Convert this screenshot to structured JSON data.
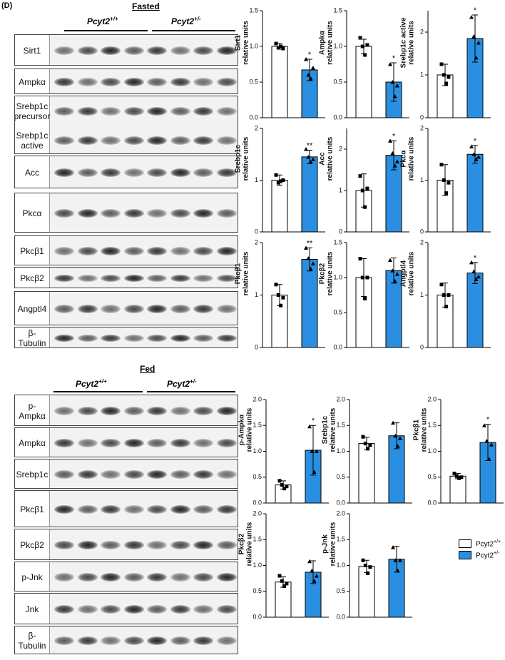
{
  "panel_label": "(D)",
  "fasted": {
    "title": "Fasted",
    "groups": [
      {
        "name": "Pcyt2",
        "sup": "+/+"
      },
      {
        "name": "Pcyt2",
        "sup": "+/-"
      }
    ],
    "blots": [
      {
        "labels": [
          "Sirt1"
        ]
      },
      {
        "labels": [
          "Ampkα"
        ]
      },
      {
        "labels": [
          "Srebp1c precursor",
          "Srebp1c active"
        ]
      },
      {
        "labels": [
          "Acc"
        ]
      },
      {
        "labels": [
          "Pkcα"
        ]
      },
      {
        "labels": [
          "Pkcβ1"
        ]
      },
      {
        "labels": [
          "Pkcβ2"
        ]
      },
      {
        "labels": [
          "Angptl4"
        ]
      },
      {
        "labels": [
          "β-Tubulin"
        ]
      }
    ]
  },
  "fed": {
    "title": "Fed",
    "groups": [
      {
        "name": "Pcyt2",
        "sup": "+/+"
      },
      {
        "name": "Pcyt2",
        "sup": "+/-"
      }
    ],
    "blots": [
      {
        "labels": [
          "p-Ampkα"
        ]
      },
      {
        "labels": [
          "Ampkα"
        ]
      },
      {
        "labels": [
          "Srebp1c"
        ]
      },
      {
        "labels": [
          "Pkcβ1"
        ]
      },
      {
        "labels": [
          "Pkcβ2"
        ]
      },
      {
        "labels": [
          "p-Jnk"
        ]
      },
      {
        "labels": [
          "Jnk"
        ]
      },
      {
        "labels": [
          "β-Tubulin"
        ]
      }
    ]
  },
  "legend": [
    {
      "name": "Pcyt2",
      "sup": "+/+",
      "color": "#ffffff"
    },
    {
      "name": "Pcyt2",
      "sup": "+/-",
      "color": "#2a8fe0"
    }
  ],
  "chart_data": [
    {
      "type": "bar",
      "ylabel": [
        "Sirt1",
        "relative units"
      ],
      "categories": [
        null,
        null
      ],
      "values": [
        1.0,
        0.67
      ],
      "errors": [
        0.04,
        0.15
      ],
      "points": [
        [
          1.04,
          0.98,
          1.0,
          0.97
        ],
        [
          0.82,
          0.6,
          0.55,
          0.7
        ]
      ],
      "significance": [
        null,
        "*"
      ],
      "ylim": [
        0,
        1.5
      ],
      "yticks": [
        {
          "value": 0,
          "label": "0.0"
        },
        {
          "value": 0.5,
          "label": "0.5"
        },
        {
          "value": 1,
          "label": "1.0"
        },
        {
          "value": 1.5,
          "label": "1.5"
        }
      ]
    },
    {
      "type": "bar",
      "ylabel": [
        "Ampkα",
        "relative units"
      ],
      "categories": [
        null,
        null
      ],
      "values": [
        1.0,
        0.5
      ],
      "errors": [
        0.1,
        0.27
      ],
      "points": [
        [
          1.12,
          1.0,
          0.88,
          1.02
        ],
        [
          0.75,
          0.5,
          0.3,
          0.45
        ]
      ],
      "significance": [
        null,
        "*"
      ],
      "ylim": [
        0,
        1.5
      ],
      "yticks": [
        {
          "value": 0,
          "label": "0.0"
        },
        {
          "value": 0.5,
          "label": "0.5"
        },
        {
          "value": 1,
          "label": "1.0"
        },
        {
          "value": 1.5,
          "label": "1.5"
        }
      ]
    },
    {
      "type": "bar",
      "ylabel": [
        "Srebp1c active",
        "relative units"
      ],
      "categories": [
        null,
        null
      ],
      "values": [
        1.0,
        1.85
      ],
      "errors": [
        0.25,
        0.55
      ],
      "points": [
        [
          1.25,
          1.0,
          0.8,
          0.95
        ],
        [
          2.35,
          1.9,
          1.4,
          1.75
        ]
      ],
      "significance": [
        null,
        "*"
      ],
      "ylim": [
        0,
        2.5
      ],
      "yticks": [
        0,
        1,
        2
      ]
    },
    {
      "type": "bar",
      "ylabel": [
        "Srebp1c",
        "relative units"
      ],
      "categories": [
        null,
        null
      ],
      "values": [
        1.0,
        1.45
      ],
      "errors": [
        0.1,
        0.13
      ],
      "points": [
        [
          1.1,
          0.95,
          0.98,
          1.0
        ],
        [
          1.6,
          1.45,
          1.35,
          1.4
        ]
      ],
      "significance": [
        null,
        "**"
      ],
      "ylim": [
        0,
        2
      ],
      "yticks": [
        0,
        1,
        2
      ]
    },
    {
      "type": "bar",
      "ylabel": [
        "Acc",
        "relative units"
      ],
      "categories": [
        null,
        null
      ],
      "values": [
        1.0,
        1.85
      ],
      "errors": [
        0.4,
        0.35
      ],
      "points": [
        [
          1.35,
          1.0,
          0.6,
          1.05
        ],
        [
          2.2,
          1.9,
          1.6,
          1.7
        ]
      ],
      "significance": [
        null,
        "*"
      ],
      "ylim": [
        0,
        2.5
      ],
      "yticks": [
        0,
        1,
        2
      ]
    },
    {
      "type": "bar",
      "ylabel": [
        "Pkcα",
        "relative units"
      ],
      "categories": [
        null,
        null
      ],
      "values": [
        1.0,
        1.5
      ],
      "errors": [
        0.3,
        0.17
      ],
      "points": [
        [
          1.3,
          1.0,
          0.75,
          0.95
        ],
        [
          1.65,
          1.5,
          1.4,
          1.45
        ]
      ],
      "significance": [
        null,
        "*"
      ],
      "ylim": [
        0,
        2
      ],
      "yticks": [
        0,
        1,
        2
      ]
    },
    {
      "type": "bar",
      "ylabel": [
        "Pkcβ1",
        "relative units"
      ],
      "categories": [
        null,
        null
      ],
      "values": [
        1.0,
        1.68
      ],
      "errors": [
        0.2,
        0.22
      ],
      "points": [
        [
          1.2,
          1.0,
          0.8,
          0.95
        ],
        [
          1.9,
          1.7,
          1.5,
          1.6
        ]
      ],
      "significance": [
        null,
        "**"
      ],
      "ylim": [
        0,
        2
      ],
      "yticks": [
        0,
        1,
        2
      ]
    },
    {
      "type": "bar",
      "ylabel": [
        "Pkcβ2",
        "relative units"
      ],
      "categories": [
        null,
        null
      ],
      "values": [
        1.0,
        1.1
      ],
      "errors": [
        0.27,
        0.18
      ],
      "points": [
        [
          1.27,
          1.0,
          0.7,
          1.0
        ],
        [
          1.25,
          1.1,
          0.95,
          1.05
        ]
      ],
      "significance": [
        null,
        null
      ],
      "ylim": [
        0,
        1.5
      ],
      "yticks": [
        {
          "value": 0,
          "label": "0.0"
        },
        {
          "value": 0.5,
          "label": "0.5"
        },
        {
          "value": 1,
          "label": "1.0"
        },
        {
          "value": 1.5,
          "label": "1.5"
        }
      ]
    },
    {
      "type": "bar",
      "ylabel": [
        "Angptl4",
        "relative units"
      ],
      "categories": [
        null,
        null
      ],
      "values": [
        1.0,
        1.42
      ],
      "errors": [
        0.23,
        0.2
      ],
      "points": [
        [
          1.2,
          1.0,
          0.78,
          1.0
        ],
        [
          1.62,
          1.45,
          1.3,
          1.35
        ]
      ],
      "significance": [
        null,
        "*"
      ],
      "ylim": [
        0,
        2
      ],
      "yticks": [
        0,
        1,
        2
      ]
    },
    {
      "type": "bar",
      "ylabel": [
        "p-Ampkα",
        "relative units"
      ],
      "categories": [
        null,
        null
      ],
      "values": [
        0.35,
        1.02
      ],
      "errors": [
        0.08,
        0.48
      ],
      "points": [
        [
          0.43,
          0.35,
          0.28,
          0.32
        ],
        [
          1.48,
          1.0,
          0.6,
          1.0
        ]
      ],
      "significance": [
        null,
        "*"
      ],
      "ylim": [
        0,
        2
      ],
      "yticks": [
        {
          "value": 0,
          "label": "0.0"
        },
        {
          "value": 0.5,
          "label": "0.5"
        },
        {
          "value": 1,
          "label": "1.0"
        },
        {
          "value": 1.5,
          "label": "1.5"
        },
        {
          "value": 2,
          "label": "2.0"
        }
      ]
    },
    {
      "type": "bar",
      "ylabel": [
        "Srebp1c",
        "relative units"
      ],
      "categories": [
        null,
        null
      ],
      "values": [
        1.15,
        1.3
      ],
      "errors": [
        0.12,
        0.25
      ],
      "points": [
        [
          1.28,
          1.15,
          1.05,
          1.12
        ],
        [
          1.55,
          1.3,
          1.1,
          1.25
        ]
      ],
      "significance": [
        null,
        null
      ],
      "ylim": [
        0,
        2
      ],
      "yticks": [
        {
          "value": 0,
          "label": "0.0"
        },
        {
          "value": 0.5,
          "label": "0.5"
        },
        {
          "value": 1,
          "label": "1.0"
        },
        {
          "value": 1.5,
          "label": "1.5"
        },
        {
          "value": 2,
          "label": "2.0"
        }
      ]
    },
    {
      "type": "bar",
      "ylabel": [
        "Pkcβ1",
        "relative units"
      ],
      "categories": [
        null,
        null
      ],
      "values": [
        0.52,
        1.17
      ],
      "errors": [
        0.05,
        0.35
      ],
      "points": [
        [
          0.57,
          0.52,
          0.48,
          0.5
        ],
        [
          1.5,
          1.2,
          0.85,
          1.13
        ]
      ],
      "significance": [
        null,
        "*"
      ],
      "ylim": [
        0,
        2
      ],
      "yticks": [
        {
          "value": 0,
          "label": "0.0"
        },
        {
          "value": 0.5,
          "label": "0.5"
        },
        {
          "value": 1,
          "label": "1.0"
        },
        {
          "value": 1.5,
          "label": "1.5"
        },
        {
          "value": 2,
          "label": "2.0"
        }
      ]
    },
    {
      "type": "bar",
      "ylabel": [
        "Pkcβ2",
        "relative units"
      ],
      "categories": [
        null,
        null
      ],
      "values": [
        0.68,
        0.87
      ],
      "errors": [
        0.1,
        0.22
      ],
      "points": [
        [
          0.8,
          0.7,
          0.6,
          0.65
        ],
        [
          1.08,
          0.9,
          0.7,
          0.8
        ]
      ],
      "significance": [
        null,
        null
      ],
      "ylim": [
        0,
        2
      ],
      "yticks": [
        {
          "value": 0,
          "label": "0.0"
        },
        {
          "value": 0.5,
          "label": "0.5"
        },
        {
          "value": 1,
          "label": "1.0"
        },
        {
          "value": 1.5,
          "label": "1.5"
        },
        {
          "value": 2,
          "label": "2.0"
        }
      ]
    },
    {
      "type": "bar",
      "ylabel": [
        "p-Jnk",
        "relative units"
      ],
      "categories": [
        null,
        null
      ],
      "values": [
        0.98,
        1.12
      ],
      "errors": [
        0.12,
        0.25
      ],
      "points": [
        [
          1.1,
          1.0,
          0.85,
          0.97
        ],
        [
          1.35,
          1.1,
          0.9,
          1.1
        ]
      ],
      "significance": [
        null,
        null
      ],
      "ylim": [
        0,
        2
      ],
      "yticks": [
        {
          "value": 0,
          "label": "0.0"
        },
        {
          "value": 0.5,
          "label": "0.5"
        },
        {
          "value": 1,
          "label": "1.0"
        },
        {
          "value": 1.5,
          "label": "1.5"
        },
        {
          "value": 2,
          "label": "2.0"
        }
      ]
    }
  ]
}
